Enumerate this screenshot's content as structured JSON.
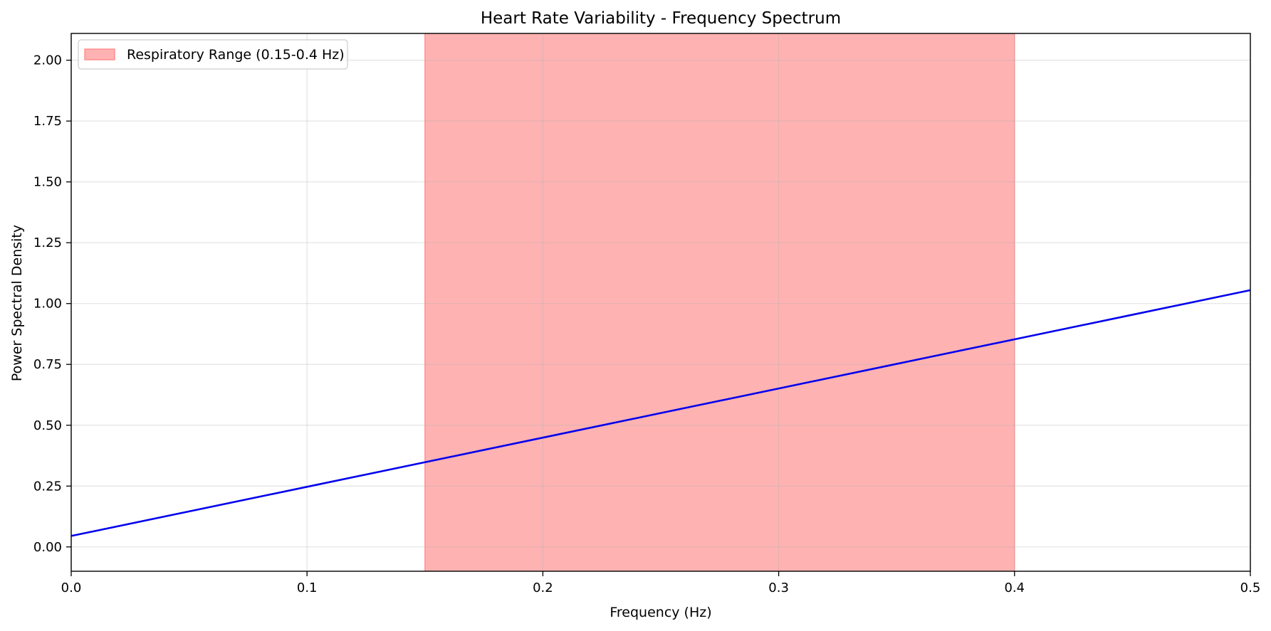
{
  "chart_data": {
    "type": "line",
    "title": "Heart Rate Variability - Frequency Spectrum",
    "xlabel": "Frequency (Hz)",
    "ylabel": "Power Spectral Density",
    "xlim": [
      0.0,
      0.5
    ],
    "ylim": [
      -0.1,
      2.11
    ],
    "xticks": [
      0.0,
      0.1,
      0.2,
      0.3,
      0.4,
      0.5
    ],
    "xtick_labels": [
      "0.0",
      "0.1",
      "0.2",
      "0.3",
      "0.4",
      "0.5"
    ],
    "yticks": [
      0.0,
      0.25,
      0.5,
      0.75,
      1.0,
      1.25,
      1.5,
      1.75,
      2.0
    ],
    "ytick_labels": [
      "0.00",
      "0.25",
      "0.50",
      "0.75",
      "1.00",
      "1.25",
      "1.50",
      "1.75",
      "2.00"
    ],
    "grid": true,
    "legend_position": "top-left",
    "series": [
      {
        "x": [
          0.0,
          0.05,
          0.1,
          0.15,
          0.2,
          0.25,
          0.3,
          0.35,
          0.4,
          0.45,
          0.5
        ],
        "values": [
          0.045,
          0.146,
          0.247,
          0.348,
          0.449,
          0.55,
          0.651,
          0.752,
          0.853,
          0.954,
          1.055
        ],
        "color": "#0000ee"
      }
    ],
    "bands": [
      {
        "name": "Respiratory Range (0.15-0.4 Hz)",
        "x_start": 0.15,
        "x_end": 0.4,
        "color": "#ff7f7f",
        "alpha": 0.6
      }
    ]
  }
}
